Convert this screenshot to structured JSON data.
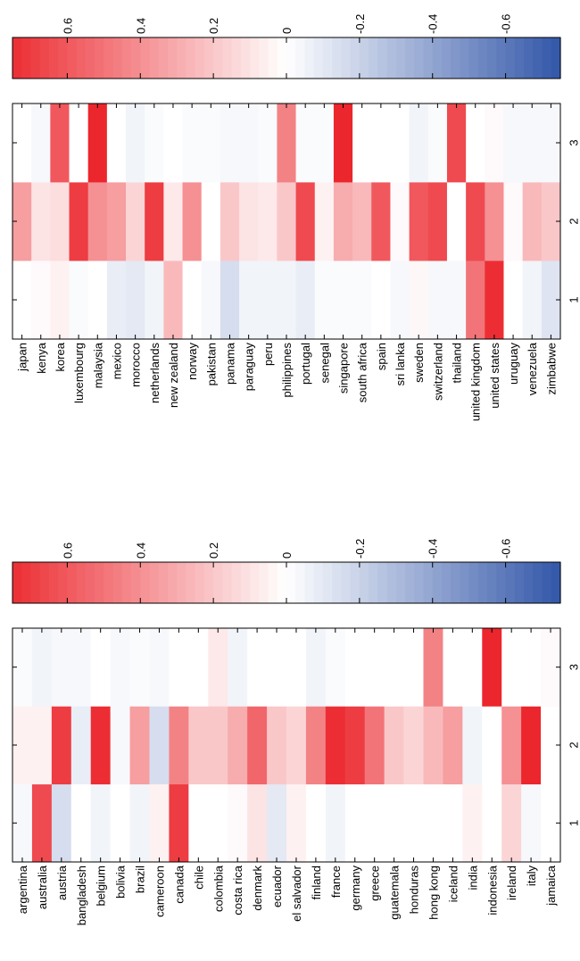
{
  "chart_data": [
    {
      "type": "heatmap",
      "panel": "top",
      "title": "",
      "xlabel": "",
      "ylabel": "",
      "rows": [
        "japan",
        "kenya",
        "korea",
        "luxembourg",
        "malaysia",
        "mexico",
        "morocco",
        "netherlands",
        "new zealand",
        "norway",
        "pakistan",
        "panama",
        "paraguay",
        "peru",
        "philippines",
        "portugal",
        "senegal",
        "singapore",
        "south africa",
        "spain",
        "sri lanka",
        "sweden",
        "switzerland",
        "thailand",
        "united kingdom",
        "united states",
        "uruguay",
        "venezuela",
        "zimbabwe"
      ],
      "columns": [
        "1",
        "2",
        "3"
      ],
      "values": [
        [
          0.0,
          0.35,
          0.0
        ],
        [
          0.02,
          0.1,
          -0.03
        ],
        [
          0.05,
          0.12,
          0.6
        ],
        [
          -0.02,
          0.7,
          0.0
        ],
        [
          0.0,
          0.4,
          0.78
        ],
        [
          -0.08,
          0.35,
          0.0
        ],
        [
          -0.1,
          0.15,
          -0.05
        ],
        [
          -0.05,
          0.7,
          -0.02
        ],
        [
          0.25,
          0.08,
          0.0
        ],
        [
          0.0,
          0.4,
          -0.02
        ],
        [
          -0.03,
          0.0,
          -0.02
        ],
        [
          -0.15,
          0.2,
          -0.03
        ],
        [
          -0.05,
          0.1,
          -0.03
        ],
        [
          -0.05,
          0.08,
          -0.02
        ],
        [
          -0.05,
          0.2,
          0.45
        ],
        [
          -0.08,
          0.65,
          -0.02
        ],
        [
          -0.02,
          0.05,
          -0.02
        ],
        [
          -0.02,
          0.3,
          0.8
        ],
        [
          -0.02,
          0.25,
          0.0
        ],
        [
          0.0,
          0.6,
          0.0
        ],
        [
          -0.03,
          0.02,
          0.0
        ],
        [
          0.03,
          0.6,
          -0.05
        ],
        [
          -0.03,
          0.65,
          -0.02
        ],
        [
          -0.03,
          0.0,
          0.65
        ],
        [
          0.5,
          0.65,
          0.0
        ],
        [
          0.75,
          0.4,
          0.02
        ],
        [
          0.0,
          0.02,
          -0.03
        ],
        [
          -0.05,
          0.25,
          -0.03
        ],
        [
          -0.12,
          0.2,
          -0.03
        ]
      ],
      "colorbar": {
        "ticks": [
          0.6,
          0.4,
          0.2,
          0,
          -0.2,
          -0.4,
          -0.6
        ],
        "tick_labels": [
          "0.6",
          "0.4",
          "0.2",
          "0",
          "-0.2",
          "-0.4",
          "-0.6"
        ],
        "range": [
          0.75,
          -0.75
        ]
      }
    },
    {
      "type": "heatmap",
      "panel": "bottom",
      "title": "",
      "xlabel": "",
      "ylabel": "",
      "rows": [
        "argentina",
        "australia",
        "austria",
        "bangladesh",
        "belgium",
        "bolivia",
        "brazil",
        "cameroon",
        "canada",
        "chile",
        "colombia",
        "costa rica",
        "denmark",
        "ecuador",
        "el salvador",
        "finland",
        "france",
        "germany",
        "greece",
        "guatemala",
        "honduras",
        "hong kong",
        "iceland",
        "india",
        "indonesia",
        "ireland",
        "italy",
        "jamaica"
      ],
      "columns": [
        "1",
        "2",
        "3"
      ],
      "values": [
        [
          -0.03,
          0.05,
          -0.02
        ],
        [
          0.65,
          0.05,
          -0.05
        ],
        [
          -0.15,
          0.7,
          -0.03
        ],
        [
          0.0,
          -0.08,
          -0.03
        ],
        [
          -0.05,
          0.75,
          0.0
        ],
        [
          0.0,
          -0.03,
          -0.03
        ],
        [
          -0.05,
          0.35,
          -0.02
        ],
        [
          0.05,
          -0.15,
          -0.03
        ],
        [
          0.7,
          0.45,
          0.0
        ],
        [
          0.0,
          0.2,
          0.0
        ],
        [
          0.0,
          0.2,
          0.08
        ],
        [
          0.02,
          0.3,
          -0.05
        ],
        [
          0.1,
          0.55,
          0.0
        ],
        [
          -0.1,
          0.2,
          0.0
        ],
        [
          0.05,
          0.15,
          0.0
        ],
        [
          0.0,
          0.45,
          -0.05
        ],
        [
          -0.05,
          0.75,
          -0.02
        ],
        [
          0.0,
          0.7,
          0.0
        ],
        [
          0.0,
          0.5,
          0.0
        ],
        [
          0.0,
          0.2,
          0.0
        ],
        [
          0.0,
          0.15,
          0.0
        ],
        [
          0.0,
          0.25,
          0.45
        ],
        [
          0.0,
          0.35,
          0.0
        ],
        [
          0.05,
          -0.05,
          0.0
        ],
        [
          0.0,
          0.0,
          0.78
        ],
        [
          0.15,
          0.4,
          0.0
        ],
        [
          -0.03,
          0.78,
          0.0
        ],
        [
          0.0,
          0.0,
          0.02
        ]
      ],
      "colorbar": {
        "ticks": [
          0.6,
          0.4,
          0.2,
          0,
          -0.2,
          -0.4,
          -0.6
        ],
        "tick_labels": [
          "0.6",
          "0.4",
          "0.2",
          "0",
          "-0.2",
          "-0.4",
          "-0.6"
        ],
        "range": [
          0.75,
          -0.75
        ]
      }
    }
  ]
}
